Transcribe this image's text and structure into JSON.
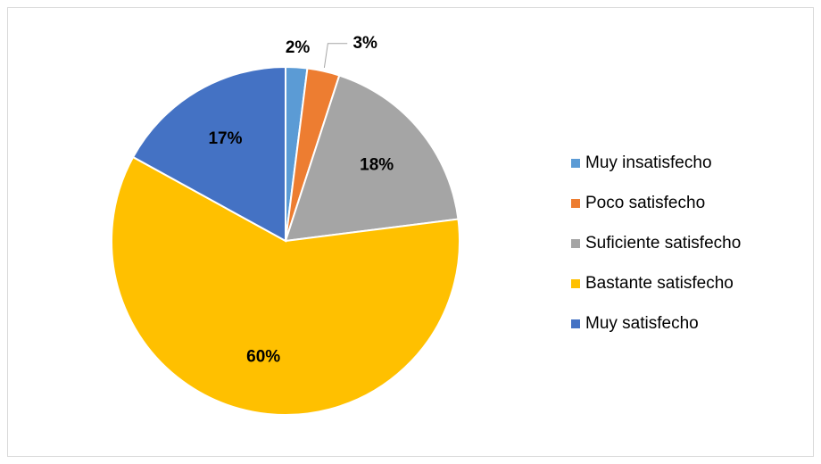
{
  "chart_data": {
    "type": "pie",
    "categories": [
      "Muy insatisfecho",
      "Poco satisfecho",
      "Suficiente satisfecho",
      "Bastante satisfecho",
      "Muy satisfecho"
    ],
    "values": [
      2,
      3,
      18,
      60,
      17
    ],
    "value_labels": [
      "2%",
      "3%",
      "18%",
      "60%",
      "17%"
    ],
    "colors": [
      "#5b9bd5",
      "#ed7d31",
      "#a5a5a5",
      "#ffc000",
      "#4472c4"
    ],
    "legend": "right"
  }
}
